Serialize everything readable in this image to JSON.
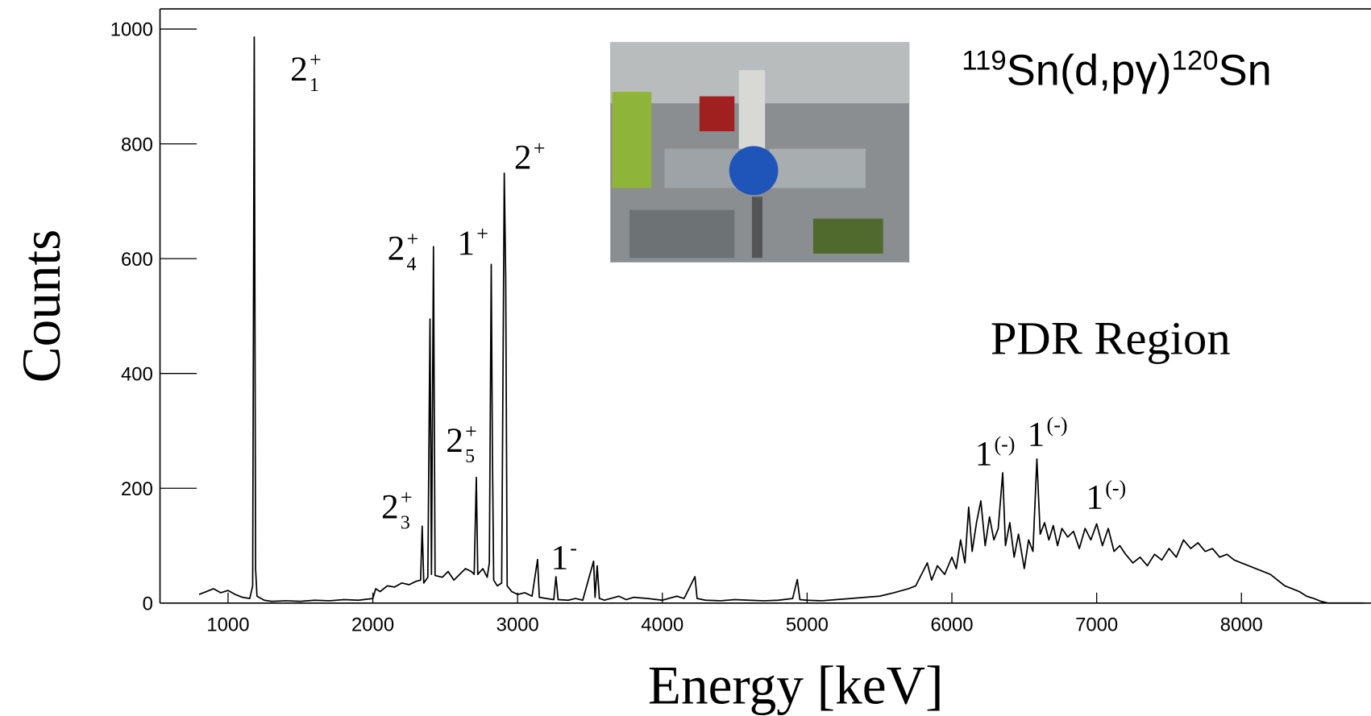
{
  "chart_data": {
    "type": "line",
    "title": [
      {
        "text": "119",
        "sup": true
      },
      {
        "text": "Sn(d,pγ)"
      },
      {
        "text": "120",
        "sup": true
      },
      {
        "text": "Sn"
      }
    ],
    "xlabel": "Energy [keV]",
    "ylabel": "Counts",
    "region_label": "PDR Region",
    "color": "#000000",
    "xlim": [
      530,
      8895
    ],
    "ylim": [
      0,
      1035
    ],
    "xticks": [
      1000,
      2000,
      3000,
      4000,
      5000,
      6000,
      7000,
      8000
    ],
    "yticks": [
      0,
      200,
      400,
      600,
      800,
      1000
    ],
    "annotations": [
      {
        "text": "2",
        "sub": "1",
        "sup": "+"
      },
      {
        "text": "2",
        "sub": "3",
        "sup": "+"
      },
      {
        "text": "2",
        "sub": "4",
        "sup": "+"
      },
      {
        "text": "2",
        "sub": "5",
        "sup": "+"
      },
      {
        "text": "1",
        "sup": "+"
      },
      {
        "text": "2",
        "sup": "+"
      },
      {
        "text": "1",
        "sup": "-"
      },
      {
        "text": "1",
        "sup": "(-)"
      },
      {
        "text": "1",
        "sup": "(-)"
      },
      {
        "text": "1",
        "sup": "(-)"
      }
    ],
    "x": [
      800,
      850,
      900,
      950,
      1000,
      1050,
      1100,
      1150,
      1170,
      1181,
      1190,
      1200,
      1250,
      1300,
      1400,
      1500,
      1600,
      1700,
      1800,
      1900,
      2000,
      2020,
      2050,
      2100,
      2150,
      2200,
      2250,
      2300,
      2330,
      2341,
      2352,
      2380,
      2395,
      2405,
      2419,
      2430,
      2480,
      2520,
      2560,
      2600,
      2640,
      2680,
      2700,
      2715,
      2725,
      2760,
      2790,
      2805,
      2818,
      2826,
      2835,
      2860,
      2890,
      2908,
      2918,
      2928,
      2960,
      3000,
      3050,
      3100,
      3138,
      3150,
      3200,
      3250,
      3265,
      3280,
      3350,
      3400,
      3450,
      3525,
      3535,
      3550,
      3565,
      3600,
      3700,
      3750,
      3800,
      3900,
      4000,
      4100,
      4150,
      4225,
      4240,
      4300,
      4400,
      4500,
      4600,
      4700,
      4800,
      4900,
      4932,
      4950,
      5000,
      5100,
      5200,
      5300,
      5400,
      5500,
      5600,
      5700,
      5750,
      5800,
      5830,
      5860,
      5900,
      5950,
      6000,
      6030,
      6060,
      6090,
      6116,
      6140,
      6170,
      6200,
      6230,
      6260,
      6290,
      6320,
      6351,
      6370,
      6400,
      6430,
      6460,
      6500,
      6530,
      6560,
      6587,
      6610,
      6640,
      6670,
      6700,
      6730,
      6760,
      6800,
      6840,
      6880,
      6920,
      6960,
      7000,
      7040,
      7080,
      7120,
      7160,
      7200,
      7250,
      7300,
      7350,
      7400,
      7450,
      7500,
      7550,
      7600,
      7650,
      7700,
      7750,
      7800,
      7850,
      7900,
      7950,
      8000,
      8050,
      8100,
      8150,
      8200,
      8250,
      8300,
      8350,
      8400,
      8450,
      8500,
      8550,
      8600,
      8700,
      8850
    ],
    "values": [
      15,
      20,
      25,
      18,
      22,
      15,
      10,
      8,
      30,
      986,
      60,
      12,
      5,
      3,
      4,
      3,
      5,
      4,
      6,
      5,
      8,
      25,
      20,
      30,
      28,
      35,
      32,
      38,
      40,
      134,
      35,
      45,
      495,
      50,
      621,
      48,
      45,
      55,
      40,
      50,
      60,
      55,
      50,
      219,
      50,
      60,
      45,
      70,
      590,
      262,
      40,
      30,
      35,
      749,
      566,
      30,
      20,
      15,
      18,
      12,
      76,
      10,
      8,
      6,
      46,
      6,
      5,
      8,
      5,
      73,
      10,
      65,
      8,
      5,
      12,
      6,
      10,
      8,
      5,
      12,
      8,
      46,
      8,
      5,
      4,
      6,
      5,
      4,
      5,
      8,
      41,
      6,
      5,
      4,
      6,
      8,
      10,
      12,
      18,
      25,
      30,
      55,
      70,
      40,
      65,
      50,
      80,
      60,
      110,
      70,
      167,
      90,
      140,
      178,
      100,
      150,
      110,
      130,
      227,
      100,
      140,
      80,
      120,
      60,
      110,
      90,
      251,
      120,
      140,
      110,
      135,
      100,
      130,
      115,
      125,
      95,
      130,
      110,
      138,
      100,
      130,
      90,
      100,
      85,
      70,
      80,
      65,
      85,
      75,
      95,
      80,
      110,
      95,
      105,
      90,
      95,
      80,
      85,
      75,
      70,
      65,
      60,
      55,
      50,
      40,
      30,
      25,
      20,
      12,
      8,
      3,
      0,
      0,
      0
    ]
  }
}
